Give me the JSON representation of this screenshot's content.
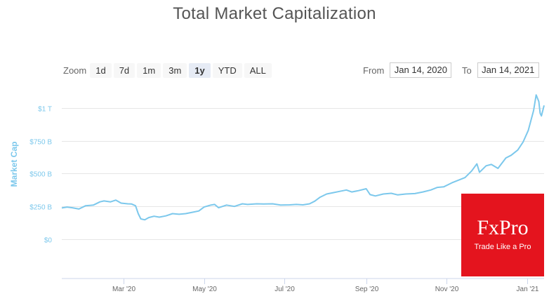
{
  "chart_data": {
    "type": "line",
    "title": "Total Market Capitalization",
    "ylabel": "Market Cap",
    "yticks": [
      {
        "value": 0,
        "label": "$0"
      },
      {
        "value": 250,
        "label": "$250 B"
      },
      {
        "value": 500,
        "label": "$500 B"
      },
      {
        "value": 750,
        "label": "$750 B"
      },
      {
        "value": 1000,
        "label": "$1 T"
      }
    ],
    "xticks": [
      {
        "date": "2020-03-01",
        "label": "Mar '20"
      },
      {
        "date": "2020-05-01",
        "label": "May '20"
      },
      {
        "date": "2020-07-01",
        "label": "Jul '20"
      },
      {
        "date": "2020-09-01",
        "label": "Sep '20"
      },
      {
        "date": "2020-11-01",
        "label": "Nov '20"
      },
      {
        "date": "2021-01-01",
        "label": "Jan '21"
      }
    ],
    "xlim": [
      "2020-01-14",
      "2021-01-14"
    ],
    "ylim": [
      -300,
      1150
    ],
    "grid": true,
    "color": "#7cc8ec",
    "series": [
      {
        "values": [
          [
            "2020-01-14",
            238
          ],
          [
            "2020-01-18",
            245
          ],
          [
            "2020-01-22",
            240
          ],
          [
            "2020-01-27",
            230
          ],
          [
            "2020-02-01",
            255
          ],
          [
            "2020-02-07",
            260
          ],
          [
            "2020-02-12",
            285
          ],
          [
            "2020-02-15",
            292
          ],
          [
            "2020-02-20",
            285
          ],
          [
            "2020-02-24",
            298
          ],
          [
            "2020-02-28",
            275
          ],
          [
            "2020-03-04",
            270
          ],
          [
            "2020-03-07",
            268
          ],
          [
            "2020-03-10",
            255
          ],
          [
            "2020-03-12",
            195
          ],
          [
            "2020-03-14",
            155
          ],
          [
            "2020-03-17",
            148
          ],
          [
            "2020-03-20",
            165
          ],
          [
            "2020-03-24",
            175
          ],
          [
            "2020-03-28",
            168
          ],
          [
            "2020-04-02",
            178
          ],
          [
            "2020-04-07",
            195
          ],
          [
            "2020-04-12",
            190
          ],
          [
            "2020-04-17",
            195
          ],
          [
            "2020-04-22",
            205
          ],
          [
            "2020-04-27",
            215
          ],
          [
            "2020-05-01",
            245
          ],
          [
            "2020-05-06",
            260
          ],
          [
            "2020-05-09",
            265
          ],
          [
            "2020-05-12",
            240
          ],
          [
            "2020-05-18",
            260
          ],
          [
            "2020-05-24",
            250
          ],
          [
            "2020-05-30",
            270
          ],
          [
            "2020-06-03",
            265
          ],
          [
            "2020-06-10",
            270
          ],
          [
            "2020-06-15",
            268
          ],
          [
            "2020-06-22",
            270
          ],
          [
            "2020-06-28",
            260
          ],
          [
            "2020-07-05",
            262
          ],
          [
            "2020-07-10",
            265
          ],
          [
            "2020-07-15",
            262
          ],
          [
            "2020-07-20",
            270
          ],
          [
            "2020-07-24",
            290
          ],
          [
            "2020-07-28",
            320
          ],
          [
            "2020-08-02",
            345
          ],
          [
            "2020-08-07",
            355
          ],
          [
            "2020-08-12",
            365
          ],
          [
            "2020-08-17",
            375
          ],
          [
            "2020-08-21",
            360
          ],
          [
            "2020-08-26",
            370
          ],
          [
            "2020-09-01",
            385
          ],
          [
            "2020-09-04",
            340
          ],
          [
            "2020-09-08",
            330
          ],
          [
            "2020-09-14",
            345
          ],
          [
            "2020-09-20",
            350
          ],
          [
            "2020-09-25",
            338
          ],
          [
            "2020-10-01",
            345
          ],
          [
            "2020-10-08",
            348
          ],
          [
            "2020-10-14",
            360
          ],
          [
            "2020-10-20",
            375
          ],
          [
            "2020-10-25",
            395
          ],
          [
            "2020-10-30",
            400
          ],
          [
            "2020-11-05",
            430
          ],
          [
            "2020-11-10",
            450
          ],
          [
            "2020-11-15",
            470
          ],
          [
            "2020-11-20",
            520
          ],
          [
            "2020-11-24",
            575
          ],
          [
            "2020-11-26",
            510
          ],
          [
            "2020-12-01",
            560
          ],
          [
            "2020-12-05",
            570
          ],
          [
            "2020-12-10",
            540
          ],
          [
            "2020-12-16",
            620
          ],
          [
            "2020-12-20",
            640
          ],
          [
            "2020-12-25",
            680
          ],
          [
            "2020-12-29",
            740
          ],
          [
            "2021-01-02",
            830
          ],
          [
            "2021-01-06",
            980
          ],
          [
            "2021-01-08",
            1100
          ],
          [
            "2021-01-10",
            1050
          ],
          [
            "2021-01-11",
            960
          ],
          [
            "2021-01-12",
            940
          ],
          [
            "2021-01-14",
            1020
          ]
        ]
      }
    ]
  },
  "range_selector": {
    "zoom_label": "Zoom",
    "buttons": [
      "1d",
      "7d",
      "1m",
      "3m",
      "1y",
      "YTD",
      "ALL"
    ],
    "active": "1y",
    "from_label": "From",
    "from_value": "Jan 14, 2020",
    "to_label": "To",
    "to_value": "Jan 14, 2021"
  },
  "watermark": {
    "logo": "FxPro",
    "tagline": "Trade Like a Pro",
    "color": "#e4141e"
  }
}
